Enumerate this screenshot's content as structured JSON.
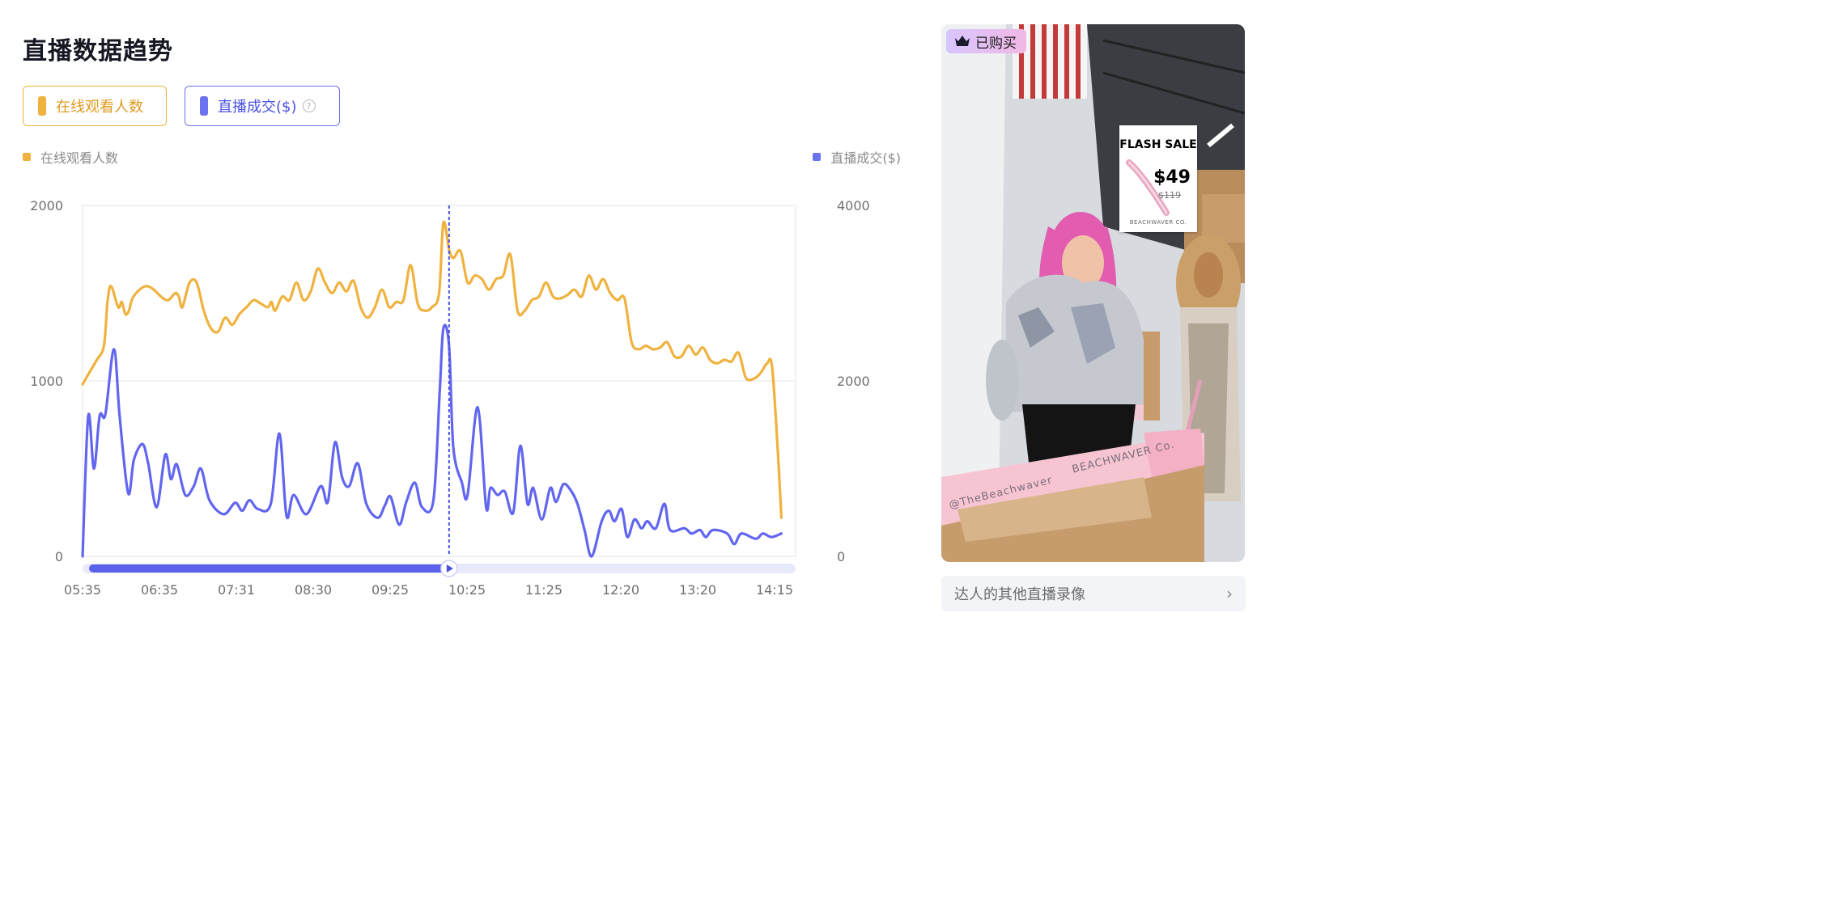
{
  "page": {
    "title": "直播数据趋势"
  },
  "metric_buttons": [
    {
      "label": "在线观看人数",
      "color": "#f0b23f"
    },
    {
      "label": "直播成交($)",
      "color": "#6b72f0"
    }
  ],
  "chart_data": {
    "type": "line",
    "x_ticks": [
      "05:35",
      "06:35",
      "07:31",
      "08:30",
      "09:25",
      "10:25",
      "11:25",
      "12:20",
      "13:20",
      "14:15"
    ],
    "x_range": [
      0,
      100
    ],
    "y_left": {
      "range": [
        0,
        2000
      ],
      "ticks": [
        "0",
        "1000",
        "2000"
      ]
    },
    "y_right": {
      "range": [
        0,
        4000
      ],
      "ticks": [
        "0",
        "2000",
        "4000"
      ]
    },
    "grid": true,
    "legend": [
      "在线观看人数",
      "直播成交($)"
    ],
    "cursor_x": 51.4,
    "slider_fraction": 0.514,
    "series": [
      {
        "name": "在线观看人数",
        "axis": "left",
        "color": "#f0b23f",
        "points": [
          [
            0,
            980
          ],
          [
            1,
            1050
          ],
          [
            2,
            1120
          ],
          [
            3,
            1200
          ],
          [
            3.5,
            1450
          ],
          [
            4,
            1540
          ],
          [
            5,
            1420
          ],
          [
            5.5,
            1450
          ],
          [
            6,
            1380
          ],
          [
            6.5,
            1400
          ],
          [
            7,
            1470
          ],
          [
            8,
            1520
          ],
          [
            9,
            1540
          ],
          [
            10,
            1520
          ],
          [
            11,
            1480
          ],
          [
            12,
            1460
          ],
          [
            13,
            1500
          ],
          [
            13.5,
            1480
          ],
          [
            14,
            1420
          ],
          [
            15,
            1560
          ],
          [
            16,
            1560
          ],
          [
            17,
            1400
          ],
          [
            18,
            1300
          ],
          [
            19,
            1280
          ],
          [
            20,
            1360
          ],
          [
            21,
            1320
          ],
          [
            22,
            1380
          ],
          [
            23,
            1420
          ],
          [
            24,
            1460
          ],
          [
            25,
            1440
          ],
          [
            26,
            1420
          ],
          [
            26.5,
            1450
          ],
          [
            27,
            1400
          ],
          [
            28,
            1480
          ],
          [
            29,
            1460
          ],
          [
            30,
            1560
          ],
          [
            31,
            1460
          ],
          [
            32,
            1510
          ],
          [
            33,
            1640
          ],
          [
            34,
            1560
          ],
          [
            35,
            1500
          ],
          [
            36,
            1560
          ],
          [
            37,
            1510
          ],
          [
            38,
            1570
          ],
          [
            39,
            1420
          ],
          [
            40,
            1360
          ],
          [
            41,
            1420
          ],
          [
            42,
            1520
          ],
          [
            43,
            1420
          ],
          [
            44,
            1450
          ],
          [
            45,
            1460
          ],
          [
            46,
            1660
          ],
          [
            47,
            1440
          ],
          [
            48,
            1400
          ],
          [
            49,
            1420
          ],
          [
            50,
            1500
          ],
          [
            50.6,
            1900
          ],
          [
            51.4,
            1750
          ],
          [
            52,
            1700
          ],
          [
            53,
            1740
          ],
          [
            54,
            1560
          ],
          [
            55,
            1600
          ],
          [
            56,
            1580
          ],
          [
            57,
            1520
          ],
          [
            58,
            1580
          ],
          [
            59,
            1600
          ],
          [
            60,
            1720
          ],
          [
            61,
            1400
          ],
          [
            62,
            1400
          ],
          [
            63,
            1460
          ],
          [
            64,
            1480
          ],
          [
            65,
            1560
          ],
          [
            66,
            1480
          ],
          [
            67,
            1470
          ],
          [
            68,
            1490
          ],
          [
            69,
            1520
          ],
          [
            70,
            1480
          ],
          [
            71,
            1600
          ],
          [
            72,
            1520
          ],
          [
            73,
            1580
          ],
          [
            74,
            1500
          ],
          [
            75,
            1460
          ],
          [
            76,
            1470
          ],
          [
            77,
            1220
          ],
          [
            78,
            1180
          ],
          [
            79,
            1200
          ],
          [
            80,
            1180
          ],
          [
            81,
            1190
          ],
          [
            82,
            1220
          ],
          [
            83,
            1140
          ],
          [
            84,
            1140
          ],
          [
            85,
            1200
          ],
          [
            86,
            1150
          ],
          [
            87,
            1190
          ],
          [
            88,
            1120
          ],
          [
            89,
            1100
          ],
          [
            90,
            1120
          ],
          [
            91,
            1110
          ],
          [
            92,
            1160
          ],
          [
            93,
            1020
          ],
          [
            94,
            1010
          ],
          [
            95,
            1040
          ],
          [
            96,
            1100
          ],
          [
            96.7,
            1080
          ],
          [
            97.5,
            600
          ],
          [
            98,
            220
          ]
        ]
      },
      {
        "name": "直播成交($)",
        "axis": "right",
        "color": "#6266ef",
        "points": [
          [
            0,
            0
          ],
          [
            0.8,
            1600
          ],
          [
            1.6,
            1000
          ],
          [
            2.4,
            1600
          ],
          [
            3.2,
            1620
          ],
          [
            4.4,
            2360
          ],
          [
            5.2,
            1600
          ],
          [
            6.4,
            720
          ],
          [
            7.2,
            1100
          ],
          [
            8.4,
            1280
          ],
          [
            9.2,
            1060
          ],
          [
            10.4,
            560
          ],
          [
            11.6,
            1160
          ],
          [
            12.4,
            880
          ],
          [
            13.2,
            1050
          ],
          [
            14.4,
            700
          ],
          [
            15.6,
            800
          ],
          [
            16.6,
            1000
          ],
          [
            17.8,
            640
          ],
          [
            19.8,
            480
          ],
          [
            21.4,
            610
          ],
          [
            22.4,
            520
          ],
          [
            23.4,
            640
          ],
          [
            24.6,
            540
          ],
          [
            26.4,
            600
          ],
          [
            27.6,
            1400
          ],
          [
            28.6,
            460
          ],
          [
            29.6,
            700
          ],
          [
            31.4,
            480
          ],
          [
            33.4,
            800
          ],
          [
            34.4,
            620
          ],
          [
            35.4,
            1300
          ],
          [
            36.4,
            900
          ],
          [
            37.4,
            800
          ],
          [
            38.6,
            1060
          ],
          [
            39.8,
            600
          ],
          [
            41.4,
            440
          ],
          [
            42.4,
            580
          ],
          [
            43.2,
            680
          ],
          [
            44.4,
            360
          ],
          [
            45.4,
            620
          ],
          [
            46.6,
            840
          ],
          [
            47.6,
            560
          ],
          [
            49.2,
            640
          ],
          [
            50.1,
            1900
          ],
          [
            50.6,
            2600
          ],
          [
            51.4,
            2400
          ],
          [
            52.0,
            1240
          ],
          [
            53.2,
            840
          ],
          [
            54.0,
            700
          ],
          [
            55.4,
            1700
          ],
          [
            56.6,
            560
          ],
          [
            57.2,
            780
          ],
          [
            58.2,
            700
          ],
          [
            59.2,
            740
          ],
          [
            60.4,
            500
          ],
          [
            61.4,
            1260
          ],
          [
            62.4,
            600
          ],
          [
            63.2,
            780
          ],
          [
            64.4,
            420
          ],
          [
            65.6,
            780
          ],
          [
            66.4,
            620
          ],
          [
            67.4,
            820
          ],
          [
            68.4,
            760
          ],
          [
            69.4,
            600
          ],
          [
            70.4,
            300
          ],
          [
            71.4,
            0
          ],
          [
            72.8,
            400
          ],
          [
            73.8,
            520
          ],
          [
            74.6,
            400
          ],
          [
            75.6,
            540
          ],
          [
            76.4,
            220
          ],
          [
            77.4,
            420
          ],
          [
            78.4,
            320
          ],
          [
            79.2,
            400
          ],
          [
            80.4,
            320
          ],
          [
            81.6,
            600
          ],
          [
            82.4,
            300
          ],
          [
            84.4,
            320
          ],
          [
            85.4,
            260
          ],
          [
            86.6,
            300
          ],
          [
            87.4,
            220
          ],
          [
            88.4,
            300
          ],
          [
            90.4,
            260
          ],
          [
            91.4,
            140
          ],
          [
            92.4,
            260
          ],
          [
            94.4,
            200
          ],
          [
            95.4,
            260
          ],
          [
            96.6,
            220
          ],
          [
            98.0,
            260
          ]
        ]
      }
    ]
  },
  "video": {
    "badge": "已购买",
    "sale_title": "FLASH SALE",
    "sale_price": "$49",
    "sale_old_price": "$119",
    "sale_brand": "BEACHWAVER CO.",
    "box_text_1": "@TheBeachwaver",
    "box_text_2": "BEACHWAVER Co."
  },
  "other_link": {
    "label": "达人的其他直播录像",
    "chevron": "›"
  }
}
